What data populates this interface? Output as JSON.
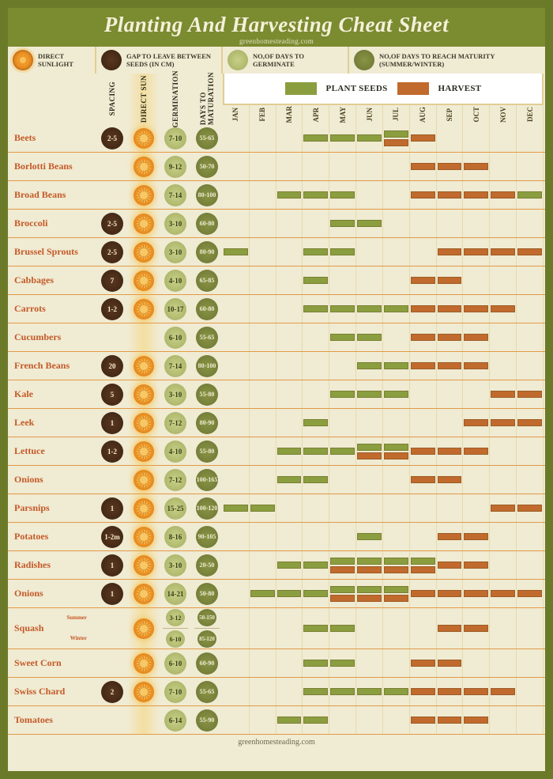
{
  "meta": {
    "title": "Planting And Harvesting Cheat Sheet",
    "site": "greenhomesteading.com"
  },
  "colors": {
    "frame": "#6b7a28",
    "titleBg": "#7a8b30",
    "titleText": "#f5f0da",
    "pageBg": "#f0ebd3",
    "rowDivider": "#e29a48",
    "plantName": "#c45a28",
    "plantBar": "#8b9e3f",
    "harvestBar": "#c16a2d",
    "brownCircle": "#3f2614",
    "ltGreenCircle": "#a8b265",
    "dkGreenCircle": "#6f7935",
    "sunColHighlight": "rgba(247,210,110,0.5)"
  },
  "legend": {
    "sun": "DIRECT SUNLIGHT",
    "gap": "GAP TO LEAVE BETWEEN SEEDS (IN CM)",
    "germ": "NO,OF DAYS TO GERMINATE",
    "mature": "NO,OF DAYS TO REACH MATURITY (SUMMER/WINTER)"
  },
  "columnHeaders": {
    "spacing": "SPACING",
    "sun": "DIRECT SUN",
    "germ": "GERMINATION",
    "maturation": "DAYS TO MATURATION"
  },
  "barLegend": {
    "plant": "PLANT SEEDS",
    "harvest": "HARVEST"
  },
  "months": [
    "JAN",
    "FEB",
    "MAR",
    "APR",
    "MAY",
    "JUN",
    "JUL",
    "AUG",
    "SEP",
    "OCT",
    "NOV",
    "DEC"
  ],
  "plants": [
    {
      "name": "Beets",
      "spacing": "2-5",
      "sun": true,
      "germ": "7-10",
      "mature": "55-65",
      "plant": [
        0,
        0,
        0,
        1,
        1,
        1,
        1,
        0,
        0,
        0,
        0,
        0
      ],
      "harvest": [
        0,
        0,
        0,
        0,
        0,
        0,
        1,
        1,
        0,
        0,
        0,
        0
      ]
    },
    {
      "name": "Borlotti Beans",
      "spacing": "",
      "sun": true,
      "germ": "9-12",
      "mature": "50-70",
      "plant": [
        0,
        0,
        0,
        0,
        0,
        0,
        0,
        0,
        0,
        0,
        0,
        0
      ],
      "harvest": [
        0,
        0,
        0,
        0,
        0,
        0,
        0,
        1,
        1,
        1,
        0,
        0
      ]
    },
    {
      "name": "Broad Beans",
      "spacing": "",
      "sun": true,
      "germ": "7-14",
      "mature": "80-100",
      "plant": [
        0,
        0,
        1,
        1,
        1,
        0,
        0,
        0,
        0,
        0,
        0,
        1
      ],
      "harvest": [
        0,
        0,
        0,
        0,
        0,
        0,
        0,
        1,
        1,
        1,
        1,
        0
      ]
    },
    {
      "name": "Broccoli",
      "spacing": "2-5",
      "sun": true,
      "germ": "3-10",
      "mature": "60-80",
      "plant": [
        0,
        0,
        0,
        0,
        1,
        1,
        0,
        0,
        0,
        0,
        0,
        0
      ],
      "harvest": [
        0,
        0,
        0,
        0,
        0,
        0,
        0,
        0,
        0,
        0,
        0,
        0
      ]
    },
    {
      "name": "Brussel Sprouts",
      "spacing": "2-5",
      "sun": true,
      "germ": "3-10",
      "mature": "80-90",
      "plant": [
        1,
        0,
        0,
        1,
        1,
        0,
        0,
        0,
        0,
        0,
        0,
        0
      ],
      "harvest": [
        0,
        0,
        0,
        0,
        0,
        0,
        0,
        0,
        1,
        1,
        1,
        1
      ]
    },
    {
      "name": "Cabbages",
      "spacing": "7",
      "sun": true,
      "germ": "4-10",
      "mature": "65-85",
      "plant": [
        0,
        0,
        0,
        1,
        0,
        0,
        0,
        0,
        0,
        0,
        0,
        0
      ],
      "harvest": [
        0,
        0,
        0,
        0,
        0,
        0,
        0,
        1,
        1,
        0,
        0,
        0
      ]
    },
    {
      "name": "Carrots",
      "spacing": "1-2",
      "sun": true,
      "germ": "10-17",
      "mature": "60-80",
      "plant": [
        0,
        0,
        0,
        1,
        1,
        1,
        1,
        0,
        0,
        0,
        0,
        0
      ],
      "harvest": [
        0,
        0,
        0,
        0,
        0,
        0,
        0,
        1,
        1,
        1,
        1,
        0
      ]
    },
    {
      "name": "Cucumbers",
      "spacing": "",
      "sun": false,
      "germ": "6-10",
      "mature": "55-65",
      "plant": [
        0,
        0,
        0,
        0,
        1,
        1,
        0,
        0,
        0,
        0,
        0,
        0
      ],
      "harvest": [
        0,
        0,
        0,
        0,
        0,
        0,
        0,
        1,
        1,
        1,
        0,
        0
      ]
    },
    {
      "name": "French Beans",
      "spacing": "20",
      "sun": true,
      "germ": "7-14",
      "mature": "80-100",
      "plant": [
        0,
        0,
        0,
        0,
        0,
        1,
        1,
        0,
        0,
        0,
        0,
        0
      ],
      "harvest": [
        0,
        0,
        0,
        0,
        0,
        0,
        0,
        1,
        1,
        1,
        0,
        0
      ]
    },
    {
      "name": "Kale",
      "spacing": "5",
      "sun": true,
      "germ": "3-10",
      "mature": "55-80",
      "plant": [
        0,
        0,
        0,
        0,
        1,
        1,
        1,
        0,
        0,
        0,
        0,
        0
      ],
      "harvest": [
        0,
        0,
        0,
        0,
        0,
        0,
        0,
        0,
        0,
        0,
        1,
        1
      ]
    },
    {
      "name": "Leek",
      "spacing": "1",
      "sun": true,
      "germ": "7-12",
      "mature": "80-90",
      "plant": [
        0,
        0,
        0,
        1,
        0,
        0,
        0,
        0,
        0,
        0,
        0,
        0
      ],
      "harvest": [
        0,
        0,
        0,
        0,
        0,
        0,
        0,
        0,
        0,
        1,
        1,
        1
      ]
    },
    {
      "name": "Lettuce",
      "spacing": "1-2",
      "sun": true,
      "germ": "4-10",
      "mature": "55-80",
      "plant": [
        0,
        0,
        1,
        1,
        1,
        1,
        1,
        0,
        0,
        0,
        0,
        0
      ],
      "harvest": [
        0,
        0,
        0,
        0,
        0,
        1,
        1,
        1,
        1,
        1,
        0,
        0
      ]
    },
    {
      "name": "Onions",
      "spacing": "",
      "sun": true,
      "germ": "7-12",
      "mature": "100-165",
      "plant": [
        0,
        0,
        1,
        1,
        0,
        0,
        0,
        0,
        0,
        0,
        0,
        0
      ],
      "harvest": [
        0,
        0,
        0,
        0,
        0,
        0,
        0,
        1,
        1,
        0,
        0,
        0
      ]
    },
    {
      "name": "Parsnips",
      "spacing": "1",
      "sun": true,
      "germ": "15-25",
      "mature": "100-120",
      "plant": [
        1,
        1,
        0,
        0,
        0,
        0,
        0,
        0,
        0,
        0,
        0,
        0
      ],
      "harvest": [
        0,
        0,
        0,
        0,
        0,
        0,
        0,
        0,
        0,
        0,
        1,
        1
      ]
    },
    {
      "name": "Potatoes",
      "spacing": "1-2m",
      "sun": true,
      "germ": "8-16",
      "mature": "90-105",
      "plant": [
        0,
        0,
        0,
        0,
        0,
        1,
        0,
        0,
        0,
        0,
        0,
        0
      ],
      "harvest": [
        0,
        0,
        0,
        0,
        0,
        0,
        0,
        0,
        1,
        1,
        0,
        0
      ]
    },
    {
      "name": "Radishes",
      "spacing": "1",
      "sun": true,
      "germ": "3-10",
      "mature": "20-50",
      "plant": [
        0,
        0,
        1,
        1,
        1,
        1,
        1,
        1,
        0,
        0,
        0,
        0
      ],
      "harvest": [
        0,
        0,
        0,
        0,
        1,
        1,
        1,
        1,
        1,
        1,
        0,
        0
      ]
    },
    {
      "name": "Onions",
      "spacing": "1",
      "sun": true,
      "germ": "14-21",
      "mature": "50-80",
      "plant": [
        0,
        1,
        1,
        1,
        1,
        1,
        1,
        0,
        0,
        0,
        0,
        0
      ],
      "harvest": [
        0,
        0,
        0,
        0,
        1,
        1,
        1,
        1,
        1,
        1,
        1,
        1
      ]
    },
    {
      "name": "Squash",
      "sublabels": [
        "Summer",
        "Winter"
      ],
      "spacing": "",
      "sun": true,
      "germ": [
        "3-12",
        "6-10"
      ],
      "mature": [
        "50-150",
        "85-120"
      ],
      "plant": [
        0,
        0,
        0,
        1,
        1,
        0,
        0,
        0,
        0,
        0,
        0,
        0
      ],
      "harvest": [
        0,
        0,
        0,
        0,
        0,
        0,
        0,
        0,
        1,
        1,
        0,
        0
      ]
    },
    {
      "name": "Sweet Corn",
      "spacing": "",
      "sun": true,
      "germ": "6-10",
      "mature": "60-90",
      "plant": [
        0,
        0,
        0,
        1,
        1,
        0,
        0,
        0,
        0,
        0,
        0,
        0
      ],
      "harvest": [
        0,
        0,
        0,
        0,
        0,
        0,
        0,
        1,
        1,
        0,
        0,
        0
      ]
    },
    {
      "name": "Swiss Chard",
      "spacing": "2",
      "sun": true,
      "germ": "7-10",
      "mature": "55-65",
      "plant": [
        0,
        0,
        0,
        1,
        1,
        1,
        1,
        0,
        0,
        0,
        0,
        0
      ],
      "harvest": [
        0,
        0,
        0,
        0,
        0,
        0,
        0,
        1,
        1,
        1,
        1,
        0
      ]
    },
    {
      "name": "Tomatoes",
      "spacing": "",
      "sun": false,
      "germ": "6-14",
      "mature": "55-90",
      "plant": [
        0,
        0,
        1,
        1,
        0,
        0,
        0,
        0,
        0,
        0,
        0,
        0
      ],
      "harvest": [
        0,
        0,
        0,
        0,
        0,
        0,
        0,
        1,
        1,
        1,
        0,
        0
      ]
    }
  ]
}
